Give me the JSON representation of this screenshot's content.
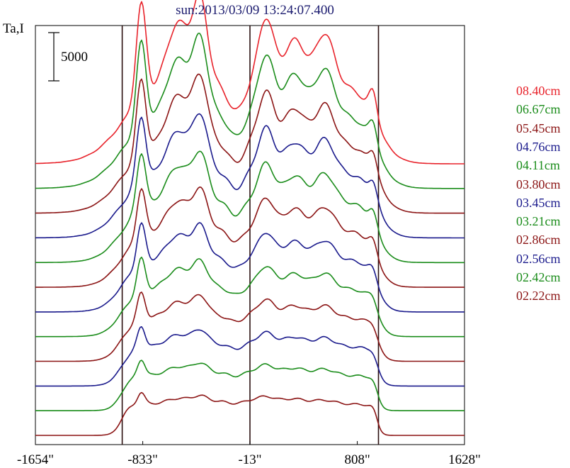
{
  "title": "sun:2013/03/09 13:24:07.400",
  "y_axis_label": "Ta,I",
  "scale_bar_label": "5000",
  "chart_data": {
    "type": "line",
    "title": "sun:2013/03/09 13:24:07.400",
    "ylabel": "Ta,I",
    "xlabel": "",
    "x_ticks": [
      "-1654\"",
      "-833\"",
      "-13\"",
      "808\"",
      "1628\""
    ],
    "x_tick_values": [
      -1654,
      -833,
      -13,
      808,
      1628
    ],
    "xlim": [
      -1654,
      1628
    ],
    "vertical_lines": [
      -990,
      -13,
      970
    ],
    "scale_bar_value": 5000,
    "grid": false,
    "legend_placement": "right",
    "series": [
      {
        "name": "08.40cm",
        "color": "#e8222a"
      },
      {
        "name": "06.67cm",
        "color": "#1a8c1a"
      },
      {
        "name": "05.45cm",
        "color": "#8b1414"
      },
      {
        "name": "04.76cm",
        "color": "#1a1a8c"
      },
      {
        "name": "04.11cm",
        "color": "#1a8c1a"
      },
      {
        "name": "03.80cm",
        "color": "#8b1414"
      },
      {
        "name": "03.45cm",
        "color": "#1a1a8c"
      },
      {
        "name": "03.21cm",
        "color": "#1a8c1a"
      },
      {
        "name": "02.86cm",
        "color": "#8b1414"
      },
      {
        "name": "02.56cm",
        "color": "#1a1a8c"
      },
      {
        "name": "02.42cm",
        "color": "#1a8c1a"
      },
      {
        "name": "02.22cm",
        "color": "#8b1414"
      }
    ]
  }
}
